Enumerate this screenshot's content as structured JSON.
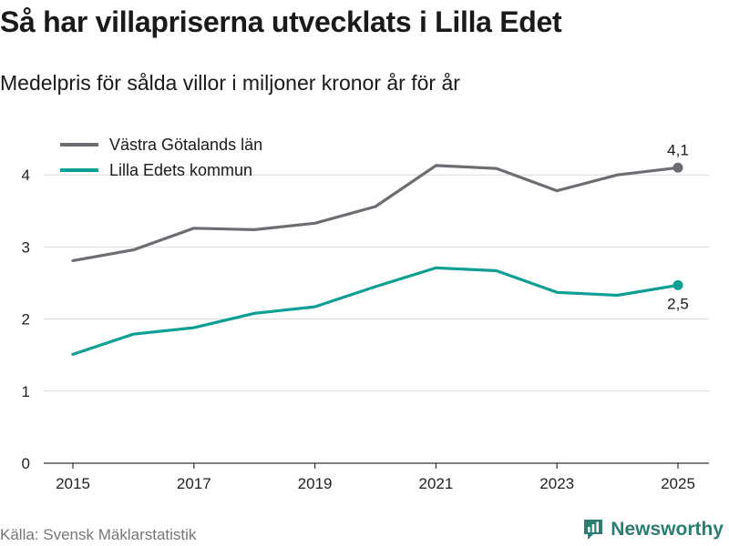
{
  "header": {
    "title": "Så har villapriserna utvecklats i Lilla Edet",
    "subtitle": "Medelpris för sålda villor i miljoner kronor år för år"
  },
  "footer": {
    "source": "Källa: Svensk Mäklarstatistik",
    "brand": "Newsworthy",
    "brand_icon": "newsworthy-logo-icon"
  },
  "colors": {
    "vastra": "#6d6c72",
    "lillaedet": "#0e9f94",
    "grid": "#d9d9d9",
    "axis": "#333333",
    "brand": "#2a7d73"
  },
  "chart_data": {
    "type": "line",
    "title": "Så har villapriserna utvecklats i Lilla Edet",
    "subtitle": "Medelpris för sålda villor i miljoner kronor år för år",
    "xlabel": "",
    "ylabel": "",
    "x": [
      2015,
      2016,
      2017,
      2018,
      2019,
      2020,
      2021,
      2022,
      2023,
      2024,
      2025
    ],
    "x_ticks": [
      "2015",
      "2017",
      "2019",
      "2021",
      "2023",
      "2025"
    ],
    "y_ticks": [
      "0",
      "1",
      "2",
      "3",
      "4"
    ],
    "xlim": [
      2015,
      2025
    ],
    "ylim": [
      0,
      4.2
    ],
    "grid": true,
    "legend_position": "top-left",
    "series": [
      {
        "name": "Västra Götalands län",
        "color": "#6d6c72",
        "values": [
          2.81,
          2.96,
          3.26,
          3.24,
          3.33,
          3.56,
          4.13,
          4.09,
          3.78,
          4.0,
          4.1
        ],
        "end_label": "4,1"
      },
      {
        "name": "Lilla Edets kommun",
        "color": "#0e9f94",
        "values": [
          1.51,
          1.79,
          1.88,
          2.08,
          2.17,
          2.45,
          2.71,
          2.67,
          2.37,
          2.33,
          2.47
        ],
        "end_label": "2,5"
      }
    ]
  }
}
